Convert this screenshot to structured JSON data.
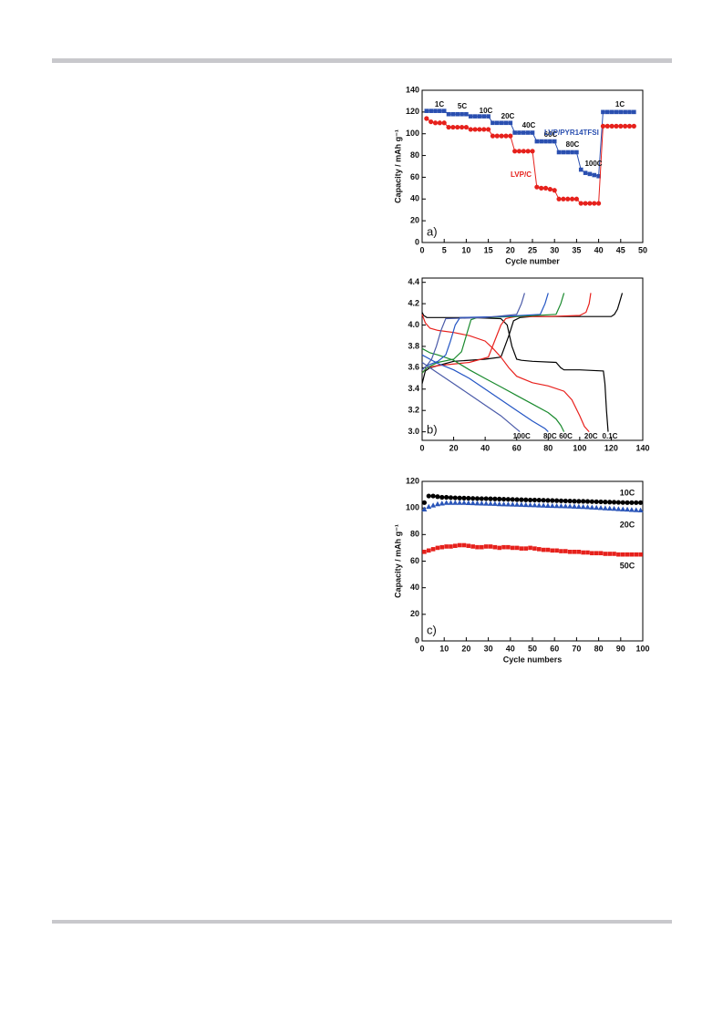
{
  "chart_data": [
    {
      "type": "line",
      "panel": "a)",
      "xlabel": "Cycle number",
      "ylabel": "Capacity / mAh g⁻¹",
      "xlim": [
        0,
        50
      ],
      "ylim": [
        0,
        140
      ],
      "xticks": [
        0,
        5,
        10,
        15,
        20,
        25,
        30,
        35,
        40,
        45,
        50
      ],
      "yticks": [
        0,
        20,
        40,
        60,
        80,
        100,
        120,
        140
      ],
      "annotations": [
        "1C",
        "5C",
        "10C",
        "20C",
        "40C",
        "60C",
        "80C",
        "100C",
        "1C"
      ],
      "x": [
        1,
        2,
        3,
        4,
        5,
        6,
        7,
        8,
        9,
        10,
        11,
        12,
        13,
        14,
        15,
        16,
        17,
        18,
        19,
        20,
        21,
        22,
        23,
        24,
        25,
        26,
        27,
        28,
        29,
        30,
        31,
        32,
        33,
        34,
        35,
        36,
        37,
        38,
        39,
        40,
        41,
        42,
        43,
        44,
        45,
        46,
        47,
        48
      ],
      "series": [
        {
          "name": "LVP/PYR14TFSI",
          "color": "#2a4fb0",
          "marker": "square",
          "values": [
            121,
            121,
            121,
            121,
            121,
            118,
            118,
            118,
            118,
            118,
            116,
            116,
            116,
            116,
            116,
            110,
            110,
            110,
            110,
            110,
            101,
            101,
            101,
            101,
            101,
            93,
            93,
            93,
            93,
            93,
            83,
            83,
            83,
            83,
            83,
            67,
            64,
            63,
            62,
            61,
            120,
            120,
            120,
            120,
            120,
            120,
            120,
            120
          ]
        },
        {
          "name": "LVP/C",
          "color": "#e6211c",
          "marker": "circle",
          "values": [
            114,
            111,
            110,
            110,
            110,
            106,
            106,
            106,
            106,
            106,
            104,
            104,
            104,
            104,
            104,
            98,
            98,
            98,
            98,
            98,
            84,
            84,
            84,
            84,
            84,
            51,
            50,
            50,
            49,
            48,
            40,
            40,
            40,
            40,
            40,
            36,
            36,
            36,
            36,
            36,
            107,
            107,
            107,
            107,
            107,
            107,
            107,
            107
          ]
        }
      ]
    },
    {
      "type": "curve",
      "panel": "b)",
      "xlim": [
        0,
        140
      ],
      "ylim": [
        2.92,
        4.44
      ],
      "xticks": [
        0,
        20,
        40,
        60,
        80,
        100,
        120,
        140
      ],
      "yticks": [
        {
          "value": 3,
          "label": "3.0"
        },
        3.2,
        3.4,
        3.6,
        3.8,
        {
          "value": 4,
          "label": "4.0"
        },
        4.2,
        4.4
      ],
      "series": [
        {
          "name": "0.1C",
          "color": "#000000",
          "charge_x": [
            0,
            2,
            5,
            10,
            20,
            40,
            50,
            55,
            58,
            62,
            70,
            100,
            120,
            122,
            124,
            125,
            126,
            127
          ],
          "charge": [
            3.45,
            3.57,
            3.6,
            3.62,
            3.66,
            3.68,
            3.7,
            3.9,
            4.04,
            4.07,
            4.08,
            4.08,
            4.08,
            4.1,
            4.15,
            4.2,
            4.25,
            4.3
          ],
          "discharge_x": [
            0,
            1,
            3,
            10,
            30,
            50,
            54,
            57,
            60,
            63,
            70,
            85,
            88,
            90,
            100,
            115,
            116,
            117,
            118
          ],
          "discharge": [
            4.12,
            4.09,
            4.07,
            4.07,
            4.07,
            4.06,
            4.0,
            3.8,
            3.68,
            3.67,
            3.66,
            3.65,
            3.6,
            3.58,
            3.58,
            3.57,
            3.45,
            3.2,
            3.0
          ]
        },
        {
          "name": "20C",
          "color": "#e8211d",
          "charge_x": [
            0,
            3,
            10,
            30,
            42,
            46,
            50,
            53,
            56,
            60,
            80,
            100,
            104,
            106,
            107
          ],
          "charge": [
            3.55,
            3.6,
            3.62,
            3.65,
            3.7,
            3.85,
            4.0,
            4.06,
            4.07,
            4.08,
            4.08,
            4.09,
            4.12,
            4.2,
            4.3
          ],
          "discharge_x": [
            0,
            2,
            5,
            10,
            20,
            30,
            40,
            45,
            50,
            55,
            60,
            70,
            80,
            90,
            95,
            100,
            103,
            106
          ],
          "discharge": [
            4.1,
            4.02,
            3.97,
            3.95,
            3.93,
            3.9,
            3.85,
            3.78,
            3.7,
            3.6,
            3.52,
            3.46,
            3.43,
            3.38,
            3.3,
            3.15,
            3.05,
            3.0
          ]
        },
        {
          "name": "60C",
          "color": "#1a8a2e",
          "charge_x": [
            0,
            3,
            10,
            20,
            25,
            28,
            31,
            35,
            60,
            85,
            88,
            90
          ],
          "charge": [
            3.55,
            3.6,
            3.65,
            3.68,
            3.75,
            3.9,
            4.05,
            4.07,
            4.08,
            4.1,
            4.2,
            4.3
          ],
          "discharge_x": [
            0,
            5,
            10,
            20,
            30,
            40,
            50,
            60,
            70,
            80,
            85,
            88,
            90
          ],
          "discharge": [
            3.78,
            3.74,
            3.72,
            3.67,
            3.58,
            3.5,
            3.42,
            3.34,
            3.26,
            3.18,
            3.12,
            3.06,
            3.0
          ]
        },
        {
          "name": "80C",
          "color": "#2355c4",
          "charge_x": [
            0,
            3,
            10,
            15,
            18,
            21,
            24,
            50,
            75,
            78,
            80
          ],
          "charge": [
            3.58,
            3.62,
            3.66,
            3.72,
            3.85,
            4.0,
            4.07,
            4.08,
            4.1,
            4.2,
            4.3
          ],
          "discharge_x": [
            0,
            5,
            10,
            20,
            30,
            40,
            50,
            60,
            70,
            78,
            80
          ],
          "discharge": [
            3.72,
            3.68,
            3.64,
            3.58,
            3.5,
            3.4,
            3.3,
            3.2,
            3.1,
            3.03,
            3.0
          ]
        },
        {
          "name": "100C",
          "color": "#4a5aa8",
          "charge_x": [
            0,
            3,
            6,
            9,
            12,
            15,
            40,
            60,
            63,
            65
          ],
          "charge": [
            3.58,
            3.62,
            3.68,
            3.8,
            3.95,
            4.06,
            4.07,
            4.1,
            4.2,
            4.3
          ],
          "discharge_x": [
            0,
            5,
            10,
            20,
            30,
            40,
            50,
            58,
            62
          ],
          "discharge": [
            3.65,
            3.6,
            3.55,
            3.45,
            3.35,
            3.25,
            3.15,
            3.05,
            3.0
          ]
        }
      ]
    },
    {
      "type": "scatter",
      "panel": "c)",
      "xlabel": "Cycle numbers",
      "ylabel": "Capacity / mAh g⁻¹",
      "xlim": [
        0,
        100
      ],
      "ylim": [
        0,
        120
      ],
      "xticks": [
        0,
        10,
        20,
        30,
        40,
        50,
        60,
        70,
        80,
        90,
        100
      ],
      "yticks": [
        0,
        20,
        40,
        60,
        80,
        100,
        120
      ],
      "x": [
        1,
        3,
        5,
        7,
        9,
        11,
        13,
        15,
        17,
        19,
        21,
        23,
        25,
        27,
        29,
        31,
        33,
        35,
        37,
        39,
        41,
        43,
        45,
        47,
        49,
        51,
        53,
        55,
        57,
        59,
        61,
        63,
        65,
        67,
        69,
        71,
        73,
        75,
        77,
        79,
        81,
        83,
        85,
        87,
        89,
        91,
        93,
        95,
        97,
        99
      ],
      "series": [
        {
          "name": "10C",
          "color": "#000000",
          "marker": "circle",
          "values": [
            104,
            109,
            109,
            108.5,
            108,
            108,
            107.8,
            107.6,
            107.5,
            107.4,
            107.3,
            107.2,
            107.1,
            107,
            107,
            106.9,
            106.8,
            106.7,
            106.6,
            106.5,
            106.4,
            106.3,
            106.2,
            106.1,
            106,
            106,
            105.9,
            105.8,
            105.7,
            105.6,
            105.5,
            105.4,
            105.3,
            105.2,
            105.1,
            105,
            105,
            104.9,
            104.8,
            104.7,
            104.6,
            104.5,
            104.4,
            104.3,
            104.2,
            104.1,
            104,
            104,
            104,
            104
          ]
        },
        {
          "name": "20C",
          "color": "#2a55b8",
          "marker": "triangle",
          "values": [
            99,
            101,
            102,
            103,
            103.5,
            104,
            104,
            104,
            104,
            104,
            103.8,
            103.7,
            103.6,
            103.5,
            103.4,
            103.3,
            103.2,
            103,
            102.9,
            102.8,
            102.7,
            102.6,
            102.5,
            102.4,
            102.3,
            102.2,
            102,
            101.9,
            101.8,
            101.7,
            101.6,
            101.5,
            101.4,
            101.3,
            101.2,
            101,
            100.9,
            100.7,
            100.5,
            100.3,
            100.1,
            99.9,
            99.7,
            99.5,
            99.3,
            99.1,
            98.9,
            98.7,
            98.5,
            98.3
          ]
        },
        {
          "name": "50C",
          "color": "#e6211c",
          "marker": "square",
          "values": [
            67,
            68,
            69,
            70,
            70.5,
            71,
            71,
            71.5,
            72,
            72,
            71.5,
            71,
            70.5,
            70.5,
            71,
            71,
            70.5,
            70,
            70.5,
            70.5,
            70,
            70,
            69.5,
            69.5,
            70,
            69.5,
            69,
            68.5,
            68.5,
            68,
            68,
            67.5,
            67.5,
            67,
            67,
            67,
            66.5,
            66.5,
            66,
            66,
            66,
            65.5,
            65.5,
            65.5,
            65,
            65,
            65,
            65,
            65,
            65
          ]
        }
      ]
    }
  ]
}
